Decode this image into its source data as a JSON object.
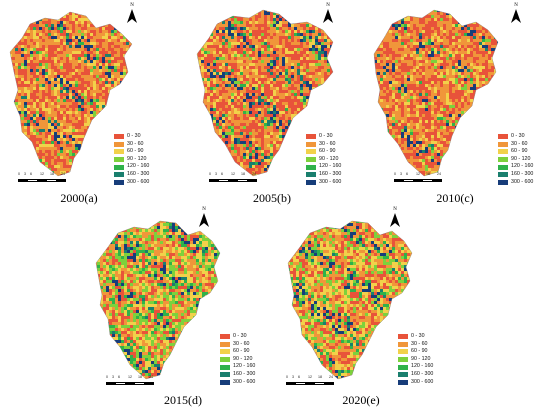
{
  "north_label": "N",
  "legend_items": [
    {
      "label": "0 - 30",
      "color": "#e8533a"
    },
    {
      "label": "30 - 60",
      "color": "#f0963a"
    },
    {
      "label": "60 - 90",
      "color": "#f2d14a"
    },
    {
      "label": "90 - 120",
      "color": "#7dd13c"
    },
    {
      "label": "120 - 160",
      "color": "#2fb24a"
    },
    {
      "label": "160 - 300",
      "color": "#1a7f6e"
    },
    {
      "label": "300 - 600",
      "color": "#173d7a"
    }
  ],
  "scale_ticks": [
    "0",
    "3",
    "6",
    "12",
    "18",
    "24"
  ],
  "panels": [
    {
      "caption": "2000(a)",
      "palette_weights": [
        0.32,
        0.34,
        0.16,
        0.05,
        0.04,
        0.05,
        0.04
      ]
    },
    {
      "caption": "2005(b)",
      "palette_weights": [
        0.34,
        0.3,
        0.12,
        0.05,
        0.05,
        0.07,
        0.07
      ]
    },
    {
      "caption": "2010(c)",
      "palette_weights": [
        0.36,
        0.34,
        0.16,
        0.06,
        0.04,
        0.03,
        0.01
      ]
    },
    {
      "caption": "2015(d)",
      "palette_weights": [
        0.18,
        0.22,
        0.2,
        0.2,
        0.14,
        0.05,
        0.01
      ]
    },
    {
      "caption": "2020(e)",
      "palette_weights": [
        0.2,
        0.24,
        0.22,
        0.16,
        0.12,
        0.05,
        0.01
      ]
    }
  ]
}
